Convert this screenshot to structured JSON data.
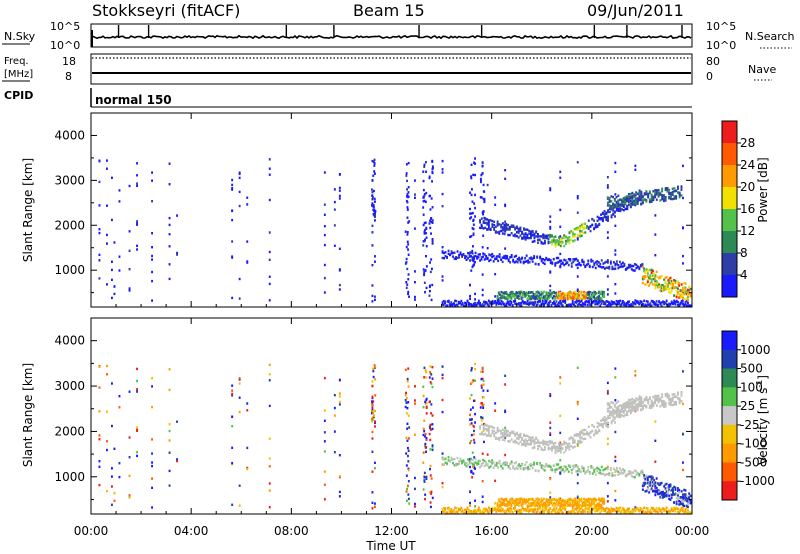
{
  "header": {
    "station": "Stokkseyri (fitACF)",
    "beam": "Beam 15",
    "date": "09/Jun/2011"
  },
  "panels": {
    "nsky": {
      "label": "N.Sky",
      "ticks_left": [
        "10^5",
        "10^0"
      ],
      "ticks_right": [
        "10^5",
        "10^0"
      ],
      "right_label": "N.Search"
    },
    "freq": {
      "label_line1": "Freq.",
      "label_line2": "[MHz]",
      "ticks_left": [
        "18",
        "8"
      ],
      "ticks_right": [
        "80",
        "0"
      ],
      "right_label": "Nave"
    },
    "cpid": {
      "label": "CPID",
      "mode": "normal 150"
    }
  },
  "colors": {
    "power": [
      "#1a1aff",
      "#2e3ea8",
      "#2e8a55",
      "#53c24a",
      "#f2e000",
      "#ff9a00",
      "#ff5a00",
      "#ee1c1c"
    ],
    "velocity": [
      "#ee1c1c",
      "#ff5a00",
      "#ff9a00",
      "#f2c200",
      "#c8c8c8",
      "#53c24a",
      "#2e8a55",
      "#2040b0",
      "#1a1aff"
    ],
    "ground_scatter": "#c0c0bc"
  },
  "chart_data": [
    {
      "type": "heatmap",
      "name": "power",
      "ylabel": "Slant Range [km]",
      "yticks": [
        1000,
        2000,
        3000,
        4000
      ],
      "ylim": [
        180,
        4500
      ],
      "xlim": [
        0,
        24
      ],
      "colorbar": {
        "label": "Power [dB]",
        "ticks": [
          "28",
          "24",
          "20",
          "16",
          "12",
          "8",
          "4"
        ],
        "range": [
          0,
          30
        ]
      }
    },
    {
      "type": "heatmap",
      "name": "velocity",
      "ylabel": "Slant Range [km]",
      "yticks": [
        1000,
        2000,
        3000,
        4000
      ],
      "ylim": [
        180,
        4500
      ],
      "xlim": [
        0,
        24
      ],
      "colorbar": {
        "label": "Velocity [m s^-1]",
        "ticks": [
          "1000",
          "500",
          "100",
          "25",
          "-25",
          "-100",
          "-500",
          "-1000"
        ]
      }
    }
  ],
  "xaxis": {
    "ticks": [
      "00:00",
      "04:00",
      "08:00",
      "12:00",
      "16:00",
      "20:00",
      "00:00"
    ],
    "label": "Time UT"
  }
}
